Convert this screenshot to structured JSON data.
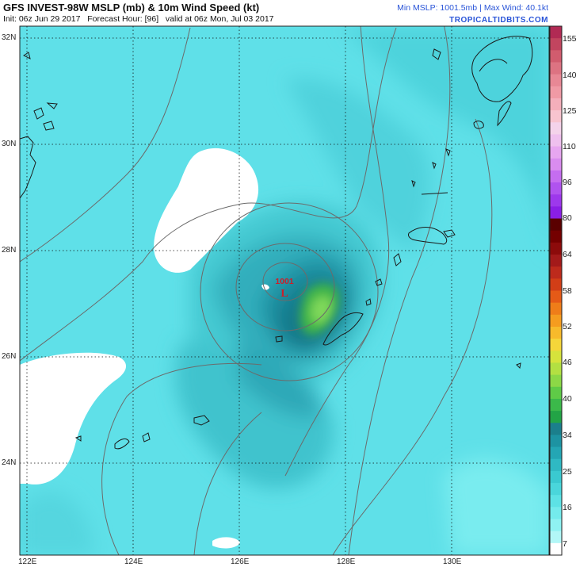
{
  "header": {
    "title": "GFS INVEST-98W MSLP (mb) & 10m Wind Speed (kt)",
    "init": "Init: 06z Jun 29 2017",
    "forecast_hour": "Forecast Hour: [96]",
    "valid": "valid at 06z Mon, Jul 03 2017",
    "min_mslp": "Min MSLP: 1001.5mb",
    "separator": "|",
    "max_wind": "Max Wind: 40.1kt",
    "brand": "TROPICALTIDBITS.COM"
  },
  "map": {
    "lat_labels": [
      "32N",
      "30N",
      "28N",
      "26N",
      "24N"
    ],
    "lon_labels": [
      "122E",
      "124E",
      "126E",
      "128E",
      "130E"
    ],
    "low_center": {
      "pressure_label": "1001",
      "symbol": "L",
      "lat": 27.3,
      "lon": 126.8
    },
    "colors": {
      "ocean_base": "#5fe0e8",
      "low_marker": "#cc1f2a",
      "isobar": "#6b6b6b",
      "coast": "#1a1a1a"
    }
  },
  "colorbar": {
    "labels": [
      "155",
      "140",
      "125",
      "110",
      "96",
      "80",
      "64",
      "58",
      "52",
      "46",
      "40",
      "34",
      "25",
      "16",
      "7"
    ],
    "colors": [
      "#b12a54",
      "#c2455f",
      "#d15c6e",
      "#dd7382",
      "#e88895",
      "#f09aa5",
      "#f4afbb",
      "#f8c4cf",
      "#f4d3ea",
      "#efc0ee",
      "#e7a6f0",
      "#d98cef",
      "#c56df0",
      "#b053ef",
      "#9d38ec",
      "#8a1ee6",
      "#5a0000",
      "#740000",
      "#8c0b0b",
      "#a31a1a",
      "#bd2a1c",
      "#d23e17",
      "#e55a17",
      "#ef7d19",
      "#f59c1f",
      "#f7ba2b",
      "#f5d63a",
      "#d6e33c",
      "#b3e042",
      "#8cd846",
      "#5fcb47",
      "#3bb94a",
      "#22a446",
      "#1b7f8c",
      "#1d93a2",
      "#24a6b4",
      "#2fb9c3",
      "#3ac9d0",
      "#4ad6db",
      "#5de2e5",
      "#74ebec",
      "#8ff2f2",
      "#b2f7f7",
      "#ffffff"
    ]
  }
}
